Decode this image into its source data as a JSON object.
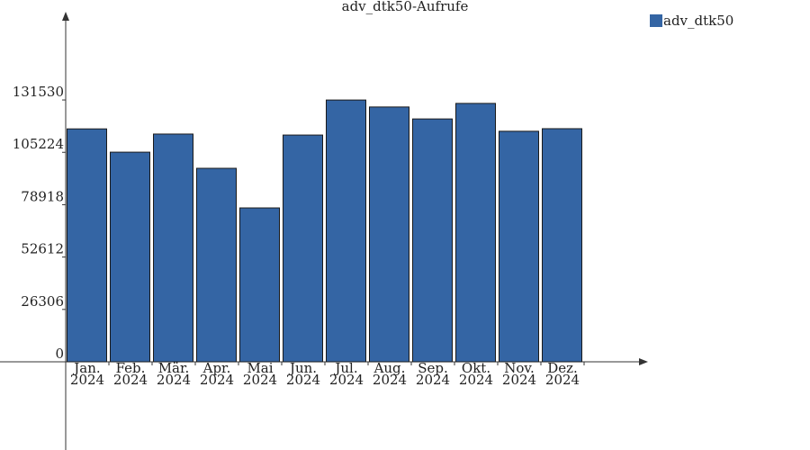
{
  "chart_data": {
    "type": "bar",
    "title": "adv_dtk50-Aufrufe",
    "categories": [
      "Jan. 2024",
      "Feb. 2024",
      "Mär. 2024",
      "Apr. 2024",
      "Mai 2024",
      "Jun. 2024",
      "Jul. 2024",
      "Aug. 2024",
      "Sep. 2024",
      "Okt. 2024",
      "Nov. 2024",
      "Dez. 2024"
    ],
    "series": [
      {
        "name": "adv_dtk50",
        "color": "#3465a4",
        "values": [
          117000,
          105300,
          114400,
          97200,
          77300,
          113900,
          131500,
          128000,
          122000,
          129800,
          115800,
          117100
        ]
      }
    ],
    "ylim": [
      -44300,
      173600
    ],
    "yticks": [
      0,
      26306,
      52612,
      78918,
      105224,
      131530
    ],
    "legend": "top-right"
  }
}
